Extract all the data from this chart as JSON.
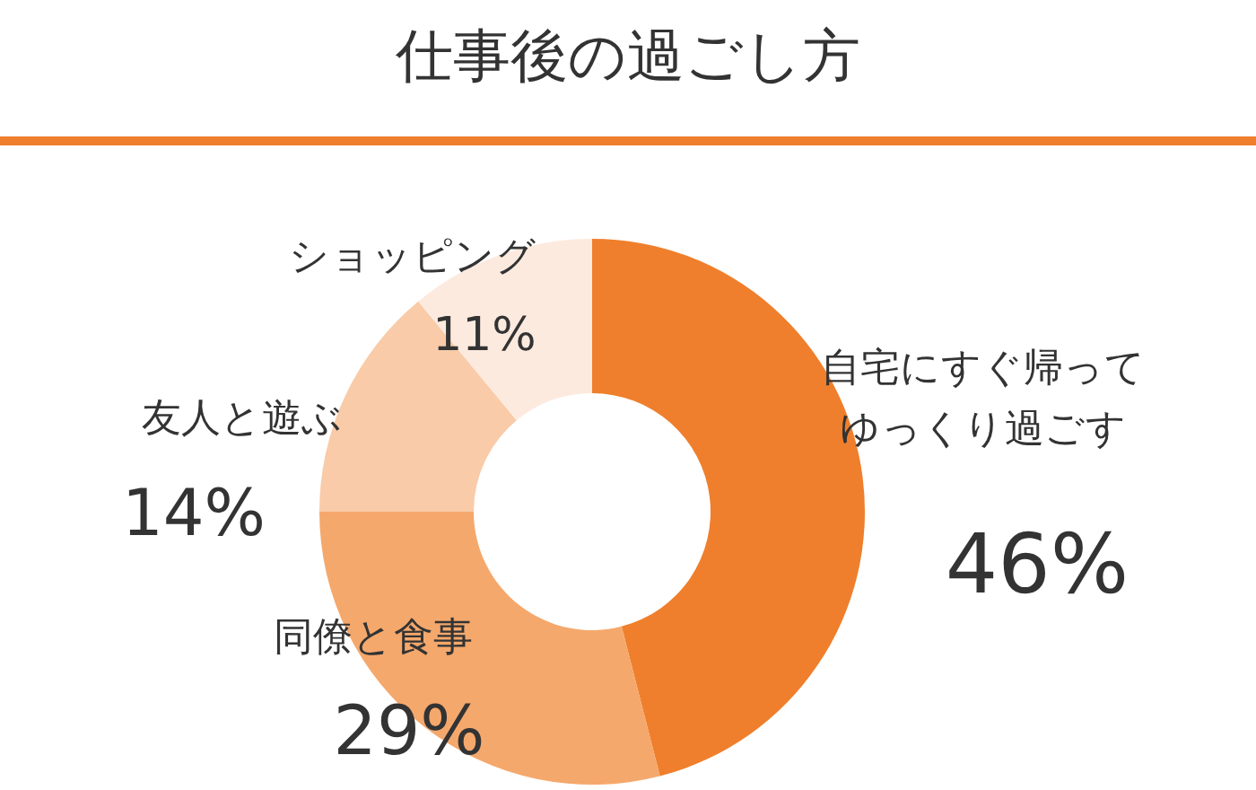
{
  "chart_data": {
    "type": "donut",
    "title": "仕事後の過ごし方",
    "categories": [
      "自宅にすぐ帰ってゆっくり過ごす",
      "同僚と食事",
      "友人と遊ぶ",
      "ショッピング"
    ],
    "values": [
      46,
      29,
      14,
      11
    ],
    "colors": [
      "#ef7f2c",
      "#f5a86c",
      "#f9cba8",
      "#fdeadf"
    ],
    "value_labels": [
      "46%",
      "29%",
      "14%",
      "11%"
    ]
  }
}
